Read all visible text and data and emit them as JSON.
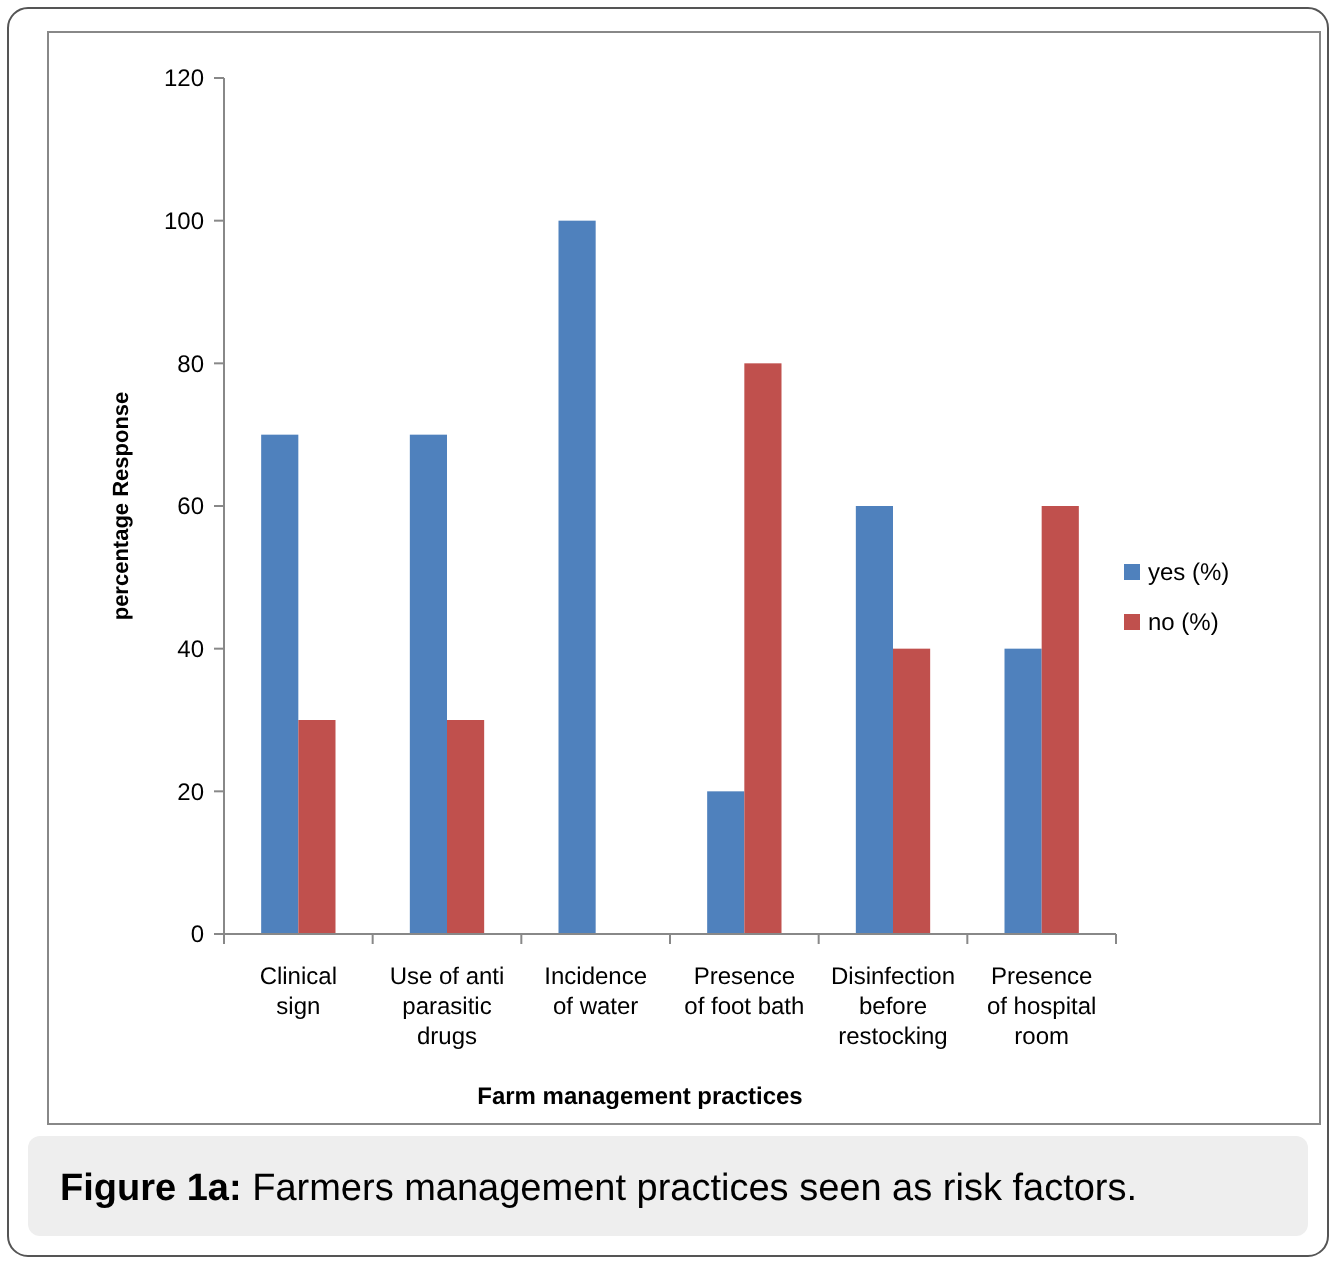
{
  "chart_data": {
    "type": "bar",
    "xlabel": "Farm management practices",
    "ylabel": "percentage Response",
    "categories": [
      "Clinical sign",
      "Use of anti parasitic drugs",
      "Incidence of water",
      "Presence of foot bath",
      "Disinfection before restocking",
      "Presence of hospital room"
    ],
    "series": [
      {
        "name": "yes (%)",
        "color": "#4f81bd",
        "values": [
          70,
          70,
          100,
          20,
          60,
          40
        ]
      },
      {
        "name": "no (%)",
        "color": "#c0504d",
        "values": [
          30,
          30,
          0,
          80,
          40,
          60
        ]
      }
    ],
    "ylim": [
      0,
      120
    ],
    "yticks": [
      0,
      20,
      40,
      60,
      80,
      100,
      120
    ],
    "grid": false,
    "legend": "right",
    "annotations": [
      "Figure 1a:  Farmers management practices seen as risk factors."
    ]
  }
}
